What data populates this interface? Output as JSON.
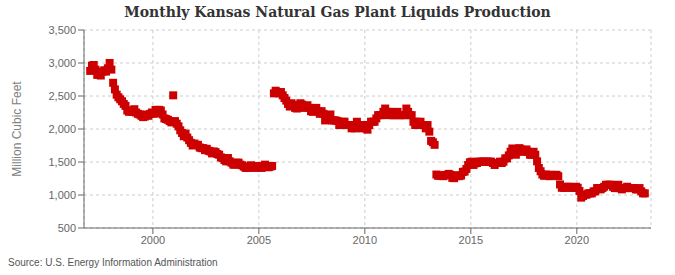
{
  "chart_data": {
    "type": "scatter",
    "title": "Monthly Kansas Natural Gas Plant Liquids Production",
    "y_label": "Million Cubic Feet",
    "annotations": [
      "Source: U.S. Energy Information Administration"
    ],
    "color": "#cc0000",
    "marker": "square",
    "grid": true,
    "xlim": [
      1996.75,
      2023.5
    ],
    "xticks": [
      2000,
      2005,
      2010,
      2015,
      2020
    ],
    "ylim": [
      500,
      3500
    ],
    "yticks": [
      500,
      {
        "value": 1000,
        "label": "1,000"
      },
      {
        "value": 1500,
        "label": "1,500"
      },
      {
        "value": 2000,
        "label": "2,000"
      },
      {
        "value": 2500,
        "label": "2,500"
      },
      {
        "value": 3000,
        "label": "3,000"
      },
      {
        "value": 3500,
        "label": "3,500"
      }
    ],
    "x": [
      1997.041667,
      1997.125,
      1997.208333,
      1997.291667,
      1997.375,
      1997.458333,
      1997.541667,
      1997.625,
      1997.708333,
      1997.791667,
      1997.875,
      1997.958333,
      1998.041667,
      1998.125,
      1998.208333,
      1998.291667,
      1998.375,
      1998.458333,
      1998.541667,
      1998.625,
      1998.708333,
      1998.791667,
      1998.875,
      1998.958333,
      1999.041667,
      1999.125,
      1999.208333,
      1999.291667,
      1999.375,
      1999.458333,
      1999.541667,
      1999.625,
      1999.708333,
      1999.791667,
      1999.875,
      1999.958333,
      2000.041667,
      2000.125,
      2000.208333,
      2000.291667,
      2000.375,
      2000.458333,
      2000.541667,
      2000.625,
      2000.708333,
      2000.791667,
      2000.875,
      2000.958333,
      2001.041667,
      2001.125,
      2001.208333,
      2001.291667,
      2001.375,
      2001.458333,
      2001.541667,
      2001.625,
      2001.708333,
      2001.791667,
      2001.875,
      2001.958333,
      2002.041667,
      2002.125,
      2002.208333,
      2002.291667,
      2002.375,
      2002.458333,
      2002.541667,
      2002.625,
      2002.708333,
      2002.791667,
      2002.875,
      2002.958333,
      2003.041667,
      2003.125,
      2003.208333,
      2003.291667,
      2003.375,
      2003.458333,
      2003.541667,
      2003.625,
      2003.708333,
      2003.791667,
      2003.875,
      2003.958333,
      2004.041667,
      2004.125,
      2004.208333,
      2004.291667,
      2004.375,
      2004.458333,
      2004.541667,
      2004.625,
      2004.708333,
      2004.791667,
      2004.875,
      2004.958333,
      2005.041667,
      2005.125,
      2005.208333,
      2005.291667,
      2005.375,
      2005.458333,
      2005.541667,
      2005.625,
      2005.708333,
      2005.791667,
      2005.875,
      2005.958333,
      2006.041667,
      2006.125,
      2006.208333,
      2006.291667,
      2006.375,
      2006.458333,
      2006.541667,
      2006.625,
      2006.708333,
      2006.791667,
      2006.875,
      2006.958333,
      2007.041667,
      2007.125,
      2007.208333,
      2007.291667,
      2007.375,
      2007.458333,
      2007.541667,
      2007.625,
      2007.708333,
      2007.791667,
      2007.875,
      2007.958333,
      2008.041667,
      2008.125,
      2008.208333,
      2008.291667,
      2008.375,
      2008.458333,
      2008.541667,
      2008.625,
      2008.708333,
      2008.791667,
      2008.875,
      2008.958333,
      2009.041667,
      2009.125,
      2009.208333,
      2009.291667,
      2009.375,
      2009.458333,
      2009.541667,
      2009.625,
      2009.708333,
      2009.791667,
      2009.875,
      2009.958333,
      2010.041667,
      2010.125,
      2010.208333,
      2010.291667,
      2010.375,
      2010.458333,
      2010.541667,
      2010.625,
      2010.708333,
      2010.791667,
      2010.875,
      2010.958333,
      2011.041667,
      2011.125,
      2011.208333,
      2011.291667,
      2011.375,
      2011.458333,
      2011.541667,
      2011.625,
      2011.708333,
      2011.791667,
      2011.875,
      2011.958333,
      2012.041667,
      2012.125,
      2012.208333,
      2012.291667,
      2012.375,
      2012.458333,
      2012.541667,
      2012.625,
      2012.708333,
      2012.791667,
      2012.875,
      2012.958333,
      2013.041667,
      2013.125,
      2013.208333,
      2013.291667,
      2013.375,
      2013.458333,
      2013.541667,
      2013.625,
      2013.708333,
      2013.791667,
      2013.875,
      2013.958333,
      2014.041667,
      2014.125,
      2014.208333,
      2014.291667,
      2014.375,
      2014.458333,
      2014.541667,
      2014.625,
      2014.708333,
      2014.791667,
      2014.875,
      2014.958333,
      2015.041667,
      2015.125,
      2015.208333,
      2015.291667,
      2015.375,
      2015.458333,
      2015.541667,
      2015.625,
      2015.708333,
      2015.791667,
      2015.875,
      2015.958333,
      2016.041667,
      2016.125,
      2016.208333,
      2016.291667,
      2016.375,
      2016.458333,
      2016.541667,
      2016.625,
      2016.708333,
      2016.791667,
      2016.875,
      2016.958333,
      2017.041667,
      2017.125,
      2017.208333,
      2017.291667,
      2017.375,
      2017.458333,
      2017.541667,
      2017.625,
      2017.708333,
      2017.791667,
      2017.875,
      2017.958333,
      2018.041667,
      2018.125,
      2018.208333,
      2018.291667,
      2018.375,
      2018.458333,
      2018.541667,
      2018.625,
      2018.708333,
      2018.791667,
      2018.875,
      2018.958333,
      2019.041667,
      2019.125,
      2019.208333,
      2019.291667,
      2019.375,
      2019.458333,
      2019.541667,
      2019.625,
      2019.708333,
      2019.791667,
      2019.875,
      2019.958333,
      2020.041667,
      2020.125,
      2020.208333,
      2020.291667,
      2020.375,
      2020.458333,
      2020.541667,
      2020.625,
      2020.708333,
      2020.791667,
      2020.875,
      2020.958333,
      2021.041667,
      2021.125,
      2021.208333,
      2021.291667,
      2021.375,
      2021.458333,
      2021.541667,
      2021.625,
      2021.708333,
      2021.791667,
      2021.875,
      2021.958333,
      2022.041667,
      2022.125,
      2022.208333,
      2022.291667,
      2022.375,
      2022.458333,
      2022.541667,
      2022.625,
      2022.708333,
      2022.791667,
      2022.875,
      2022.958333,
      2023.041667,
      2023.125,
      2023.208333
    ],
    "values": [
      2880,
      2960,
      2970,
      2900,
      2820,
      2830,
      2810,
      2870,
      2890,
      2870,
      2920,
      3000,
      2900,
      2700,
      2600,
      2520,
      2480,
      2450,
      2420,
      2380,
      2350,
      2280,
      2260,
      2280,
      2260,
      2300,
      2250,
      2230,
      2220,
      2200,
      2180,
      2190,
      2220,
      2200,
      2230,
      2250,
      2230,
      2290,
      2240,
      2290,
      2280,
      2220,
      2160,
      2150,
      2140,
      2120,
      2100,
      2510,
      2120,
      2080,
      2040,
      1980,
      1940,
      1890,
      1930,
      1870,
      1830,
      1790,
      1750,
      1780,
      1760,
      1760,
      1720,
      1710,
      1710,
      1680,
      1700,
      1670,
      1660,
      1630,
      1660,
      1650,
      1620,
      1610,
      1570,
      1560,
      1530,
      1510,
      1560,
      1510,
      1490,
      1460,
      1460,
      1490,
      1490,
      1460,
      1450,
      1430,
      1410,
      1410,
      1430,
      1450,
      1440,
      1410,
      1440,
      1430,
      1440,
      1410,
      1430,
      1460,
      1430,
      1420,
      1430,
      1440,
      2540,
      2580,
      2560,
      2540,
      2560,
      2510,
      2470,
      2430,
      2380,
      2340,
      2390,
      2360,
      2320,
      2310,
      2360,
      2390,
      2370,
      2320,
      2330,
      2360,
      2320,
      2270,
      2260,
      2310,
      2320,
      2270,
      2230,
      2270,
      2230,
      2130,
      2170,
      2170,
      2220,
      2130,
      2130,
      2130,
      2120,
      2060,
      2060,
      2110,
      2110,
      2060,
      2060,
      2060,
      2010,
      2060,
      2010,
      2110,
      2060,
      2060,
      2010,
      2060,
      2010,
      1990,
      2060,
      2110,
      2110,
      2110,
      2160,
      2210,
      2210,
      2210,
      2260,
      2310,
      2260,
      2210,
      2260,
      2210,
      2210,
      2210,
      2260,
      2210,
      2210,
      2210,
      2210,
      2310,
      2260,
      2210,
      2210,
      2110,
      2060,
      2110,
      2060,
      2110,
      2060,
      2060,
      2010,
      2060,
      1960,
      1820,
      1800,
      1760,
      1310,
      1290,
      1300,
      1290,
      1285,
      1300,
      1305,
      1320,
      1305,
      1260,
      1255,
      1285,
      1300,
      1285,
      1295,
      1350,
      1355,
      1395,
      1455,
      1495,
      1505,
      1455,
      1480,
      1485,
      1505,
      1505,
      1505,
      1505,
      1505,
      1505,
      1505,
      1505,
      1485,
      1455,
      1485,
      1485,
      1505,
      1485,
      1505,
      1555,
      1555,
      1600,
      1655,
      1705,
      1660,
      1610,
      1655,
      1710,
      1690,
      1660,
      1655,
      1690,
      1655,
      1610,
      1610,
      1655,
      1610,
      1510,
      1410,
      1360,
      1310,
      1290,
      1310,
      1305,
      1285,
      1305,
      1290,
      1305,
      1305,
      1285,
      1160,
      1110,
      1110,
      1110,
      1125,
      1125,
      1110,
      1110,
      1110,
      1125,
      1110,
      1060,
      960,
      985,
      1005,
      1005,
      1025,
      1025,
      1025,
      1055,
      1055,
      1105,
      1105,
      1085,
      1105,
      1125,
      1155,
      1155,
      1155,
      1155,
      1125,
      1105,
      1105,
      1155,
      1105,
      1085,
      1105,
      1105,
      1125,
      1105,
      1105,
      1105,
      1105,
      1085,
      1085,
      1105,
      1055,
      1025,
      1025
    ]
  }
}
